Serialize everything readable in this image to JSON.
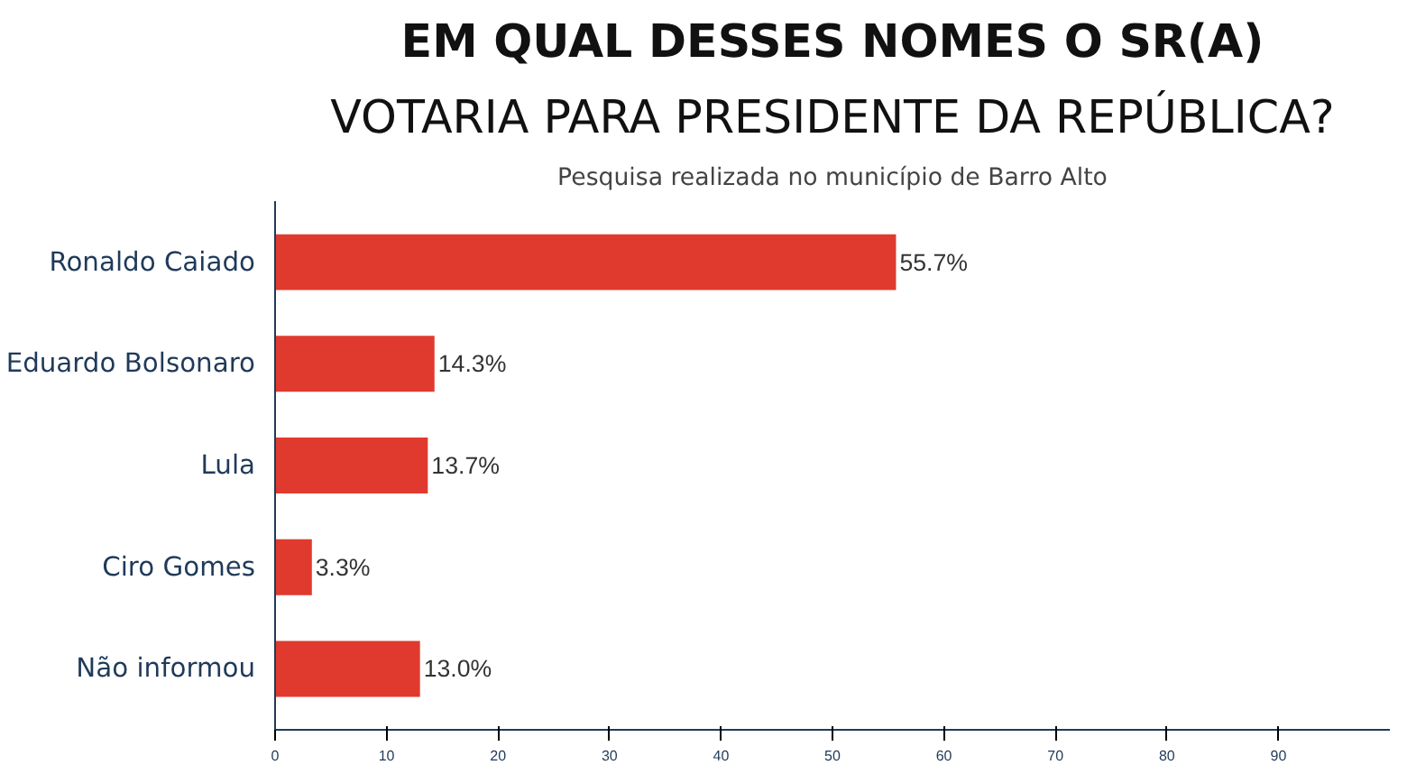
{
  "chart_data": {
    "type": "bar",
    "orientation": "horizontal",
    "title": "EM QUAL DESSES NOMES O SR(A)",
    "subtitle": "VOTARIA PARA PRESIDENTE DA REPÚBLICA?",
    "annotations": [
      "Pesquisa realizada no município de Barro Alto"
    ],
    "categories": [
      "Ronaldo Caiado",
      "Eduardo Bolsonaro",
      "Lula",
      "Ciro Gomes",
      "Não informou"
    ],
    "values": [
      55.7,
      14.3,
      13.7,
      3.3,
      13.0
    ],
    "value_labels": [
      "55.7%",
      "14.3%",
      "13.7%",
      "3.3%",
      "13.0%"
    ],
    "color": "#e03a2e",
    "xlim": [
      0,
      100
    ],
    "xticks": [
      0,
      10,
      20,
      30,
      40,
      50,
      60,
      70,
      80,
      90
    ],
    "grid": false
  }
}
